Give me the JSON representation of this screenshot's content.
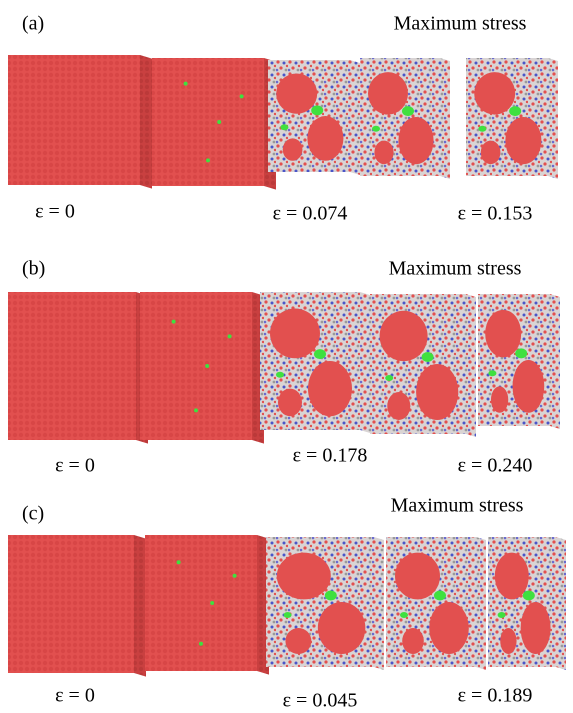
{
  "panels": [
    {
      "label": "(a)",
      "heading": "Maximum stress",
      "strains": [
        "ε = 0",
        "ε = 0.074",
        "ε = 0.153"
      ]
    },
    {
      "label": "(b)",
      "heading": "Maximum stress",
      "strains": [
        "ε = 0",
        "ε = 0.178",
        "ε = 0.240"
      ]
    },
    {
      "label": "(c)",
      "heading": "Maximum stress",
      "strains": [
        "ε = 0",
        "ε = 0.045",
        "ε = 0.189"
      ]
    }
  ]
}
